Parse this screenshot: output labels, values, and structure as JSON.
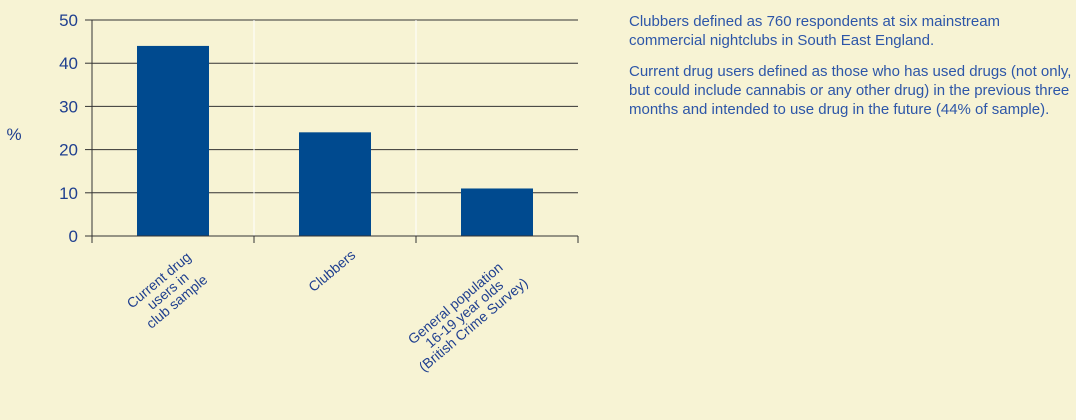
{
  "chart_data": {
    "type": "bar",
    "categories": [
      [
        "Current drug",
        "users in",
        "club sample"
      ],
      [
        "Clubbers"
      ],
      [
        "General population",
        "16-19 year olds",
        "(British Crime Survey)"
      ]
    ],
    "values": [
      44,
      24,
      11
    ],
    "ylabel": "%",
    "ylim": [
      0,
      50
    ],
    "yticks": [
      0,
      10,
      20,
      30,
      40,
      50
    ],
    "grid": true,
    "colors": {
      "bar": "#004a8f",
      "axis": "#333333",
      "grid": "#ffffff",
      "text": "#1f3f8f"
    }
  },
  "notes": {
    "p1": "Clubbers defined as 760 respondents at six mainstream commercial nightclubs in South East England.",
    "p2": "Current drug users defined as those who has used drugs (not only, but could include cannabis or any other drug) in the previous three months and intended to use drug in the future (44% of sample)."
  }
}
